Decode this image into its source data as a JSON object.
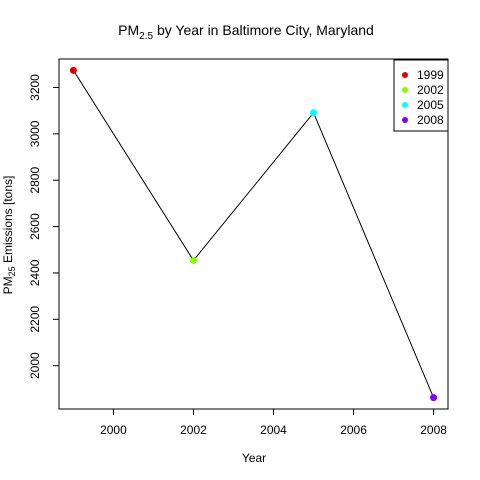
{
  "chart_data": {
    "type": "line",
    "title": {
      "prefix": "PM",
      "subscript": "2.5",
      "suffix": " by Year in Baltimore City, Maryland"
    },
    "xlabel": "Year",
    "ylabel": {
      "prefix": "PM",
      "subscript": "25",
      "suffix": " Emissions [tons]"
    },
    "x": [
      1999,
      2002,
      2005,
      2008
    ],
    "values": [
      3274,
      2454,
      3091,
      1862
    ],
    "point_colors": [
      "#e00000",
      "#80ff00",
      "#00ffff",
      "#8000ff"
    ],
    "line_color": "#000000",
    "xlim": [
      1998.64,
      2008.36
    ],
    "ylim": [
      1813,
      3323
    ],
    "xticks": [
      2000,
      2002,
      2004,
      2006,
      2008
    ],
    "yticks": [
      2000,
      2200,
      2400,
      2600,
      2800,
      3000,
      3200
    ],
    "legend": {
      "position": "top-right",
      "entries": [
        {
          "label": "1999",
          "color": "#e00000"
        },
        {
          "label": "2002",
          "color": "#80ff00"
        },
        {
          "label": "2005",
          "color": "#00ffff"
        },
        {
          "label": "2008",
          "color": "#8000ff"
        }
      ]
    },
    "grid": false
  }
}
